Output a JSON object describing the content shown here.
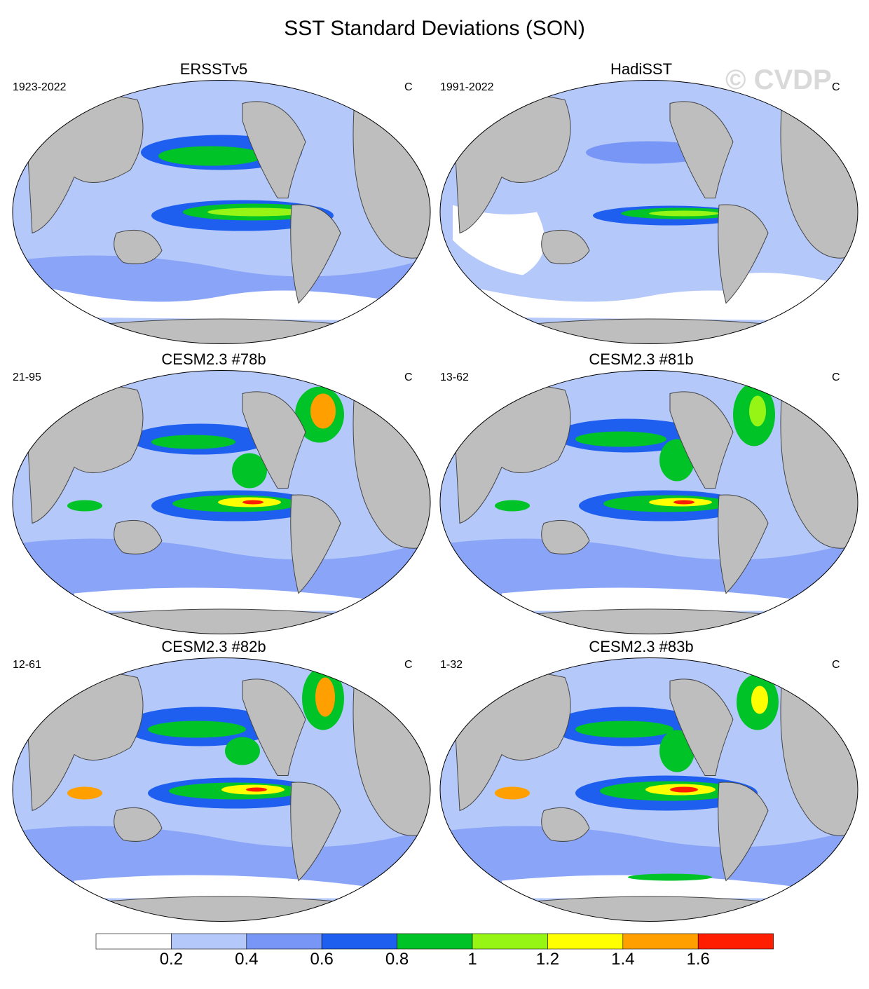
{
  "title": "SST Standard Deviations (SON)",
  "watermark": "© CVDP",
  "panels": [
    {
      "title": "ERSSTv5",
      "left_label": "1923-2022",
      "right_label": "C"
    },
    {
      "title": "HadiSST",
      "left_label": "1991-2022",
      "right_label": "C"
    },
    {
      "title": "CESM2.3 #78b",
      "left_label": "21-95",
      "right_label": "C"
    },
    {
      "title": "CESM2.3 #81b",
      "left_label": "13-62",
      "right_label": "C"
    },
    {
      "title": "CESM2.3 #82b",
      "left_label": "12-61",
      "right_label": "C"
    },
    {
      "title": "CESM2.3 #83b",
      "left_label": "1-32",
      "right_label": "C"
    }
  ],
  "colorbar": {
    "labels": [
      "0.2",
      "0.4",
      "0.6",
      "0.8",
      "1",
      "1.2",
      "1.4",
      "1.6"
    ],
    "colors": [
      "#ffffff",
      "#b4c8fa",
      "#7896f5",
      "#1e5ff0",
      "#00c328",
      "#96f514",
      "#ffff00",
      "#ffa000",
      "#ff1e00"
    ]
  },
  "colors": {
    "land": "#bebebe",
    "coast": "#444444",
    "ocean_base": "#b4c8fa"
  }
}
